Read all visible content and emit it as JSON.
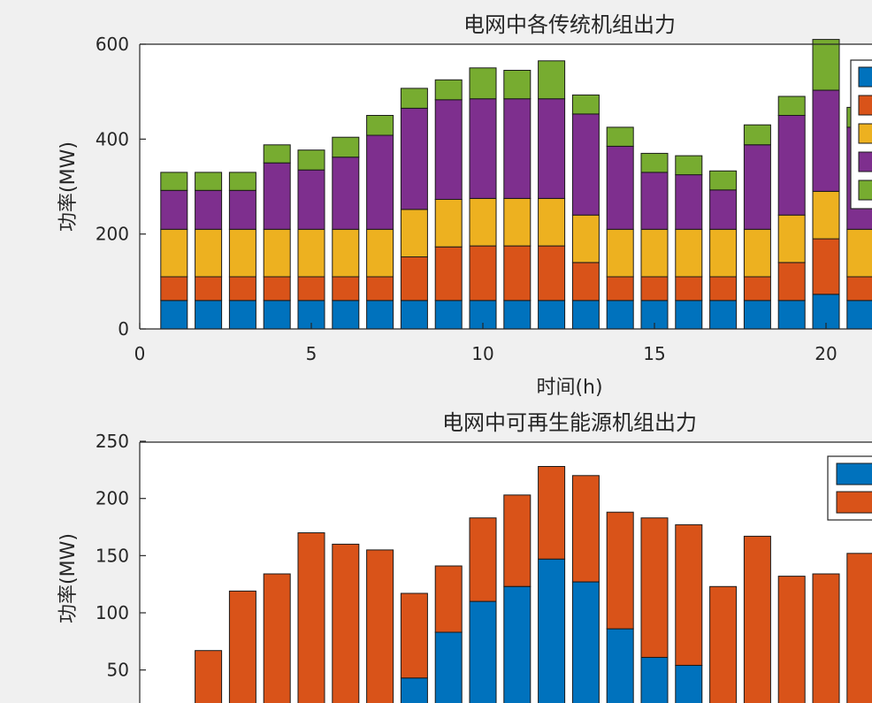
{
  "chart_data": [
    {
      "type": "bar",
      "stacked": true,
      "title": "电网中各传统机组出力",
      "xlabel": "时间(h)",
      "ylabel": "功率(MW)",
      "x": [
        1,
        2,
        3,
        4,
        5,
        6,
        7,
        8,
        9,
        10,
        11,
        12,
        13,
        14,
        15,
        16,
        17,
        18,
        19,
        20,
        21
      ],
      "xlim": [
        0,
        21
      ],
      "ylim": [
        0,
        600
      ],
      "xticks": [
        0,
        5,
        10,
        15,
        20
      ],
      "yticks": [
        0,
        200,
        400,
        600
      ],
      "legend_position": "top-right",
      "grid": false,
      "series": [
        {
          "color": "#0072BD",
          "values": [
            60,
            60,
            60,
            60,
            60,
            60,
            60,
            60,
            60,
            60,
            60,
            60,
            60,
            60,
            60,
            60,
            60,
            60,
            60,
            73,
            60
          ]
        },
        {
          "color": "#D95319",
          "values": [
            50,
            50,
            50,
            50,
            50,
            50,
            50,
            92,
            113,
            115,
            115,
            115,
            80,
            50,
            50,
            50,
            50,
            50,
            80,
            117,
            50
          ]
        },
        {
          "color": "#EDB120",
          "values": [
            100,
            100,
            100,
            100,
            100,
            100,
            100,
            100,
            100,
            100,
            100,
            100,
            100,
            100,
            100,
            100,
            100,
            100,
            100,
            100,
            100
          ]
        },
        {
          "color": "#7E2F8E",
          "values": [
            82,
            82,
            82,
            140,
            125,
            152,
            198,
            213,
            210,
            210,
            210,
            210,
            213,
            175,
            120,
            115,
            83,
            178,
            210,
            213,
            215
          ]
        },
        {
          "color": "#77AC30",
          "values": [
            38,
            38,
            38,
            38,
            42,
            42,
            42,
            42,
            42,
            65,
            60,
            80,
            40,
            40,
            40,
            40,
            40,
            42,
            40,
            107,
            42
          ]
        }
      ]
    },
    {
      "type": "bar",
      "stacked": true,
      "title": "电网中可再生能源机组出力",
      "ylabel": "功率(MW)",
      "x": [
        1,
        2,
        3,
        4,
        5,
        6,
        7,
        8,
        9,
        10,
        11,
        12,
        13,
        14,
        15,
        16,
        17,
        18,
        19,
        20,
        21
      ],
      "xlim": [
        0,
        21
      ],
      "ylim": [
        0,
        250
      ],
      "yticks": [
        50,
        100,
        150,
        200,
        250
      ],
      "legend_position": "top-right",
      "grid": false,
      "series": [
        {
          "color": "#0072BD",
          "values": [
            0,
            0,
            0,
            0,
            0,
            0,
            0,
            43,
            83,
            110,
            123,
            147,
            127,
            86,
            61,
            54,
            0,
            0,
            0,
            0,
            0
          ]
        },
        {
          "color": "#D95319",
          "values": [
            0,
            67,
            119,
            134,
            170,
            160,
            155,
            74,
            58,
            73,
            80,
            81,
            93,
            102,
            122,
            123,
            123,
            167,
            132,
            134,
            152
          ]
        }
      ]
    }
  ]
}
